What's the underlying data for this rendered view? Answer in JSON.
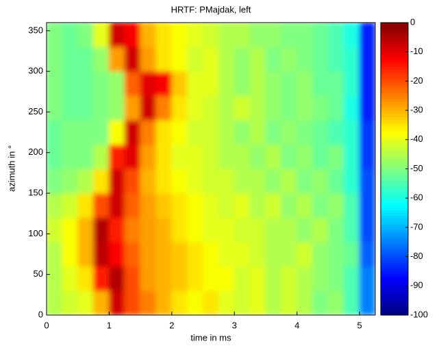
{
  "chart_data": {
    "type": "heatmap",
    "title": "HRTF: PMajdak, left",
    "x_label": "time in ms",
    "y_label": "azimuth in °",
    "colormap": "jet",
    "x": [
      0.125,
      0.375,
      0.625,
      0.875,
      1.125,
      1.375,
      1.625,
      1.875,
      2.125,
      2.375,
      2.625,
      2.875,
      3.125,
      3.375,
      3.625,
      3.875,
      4.125,
      4.375,
      4.625,
      4.875,
      5.125
    ],
    "y": [
      15,
      45,
      75,
      105,
      135,
      165,
      195,
      225,
      255,
      285,
      315,
      345
    ],
    "values": [
      [
        -45,
        -42,
        -40,
        -30,
        -8,
        -20,
        -25,
        -30,
        -35,
        -38,
        -35,
        -40,
        -42,
        -40,
        -45,
        -42,
        -45,
        -50,
        -48,
        -55,
        -75
      ],
      [
        -45,
        -40,
        -35,
        -15,
        -5,
        -20,
        -28,
        -30,
        -32,
        -35,
        -38,
        -38,
        -42,
        -40,
        -45,
        -42,
        -45,
        -48,
        -50,
        -55,
        -75
      ],
      [
        -45,
        -38,
        -30,
        -6,
        -12,
        -22,
        -28,
        -30,
        -32,
        -35,
        -38,
        -40,
        -40,
        -42,
        -45,
        -45,
        -42,
        -48,
        -50,
        -52,
        -78
      ],
      [
        -42,
        -38,
        -30,
        -5,
        -15,
        -25,
        -28,
        -30,
        -35,
        -38,
        -40,
        -40,
        -42,
        -42,
        -45,
        -45,
        -48,
        -45,
        -50,
        -55,
        -80
      ],
      [
        -45,
        -42,
        -35,
        -20,
        -8,
        -22,
        -28,
        -32,
        -35,
        -38,
        -40,
        -42,
        -40,
        -45,
        -42,
        -48,
        -45,
        -50,
        -48,
        -55,
        -80
      ],
      [
        -50,
        -48,
        -45,
        -35,
        -8,
        -20,
        -30,
        -35,
        -38,
        -40,
        -42,
        -42,
        -45,
        -45,
        -48,
        -45,
        -50,
        -48,
        -52,
        -58,
        -80
      ],
      [
        -52,
        -50,
        -50,
        -45,
        -15,
        -10,
        -28,
        -35,
        -40,
        -40,
        -42,
        -45,
        -45,
        -48,
        -45,
        -50,
        -48,
        -52,
        -50,
        -58,
        -82
      ],
      [
        -52,
        -50,
        -50,
        -50,
        -38,
        -8,
        -25,
        -35,
        -38,
        -42,
        -42,
        -45,
        -48,
        -45,
        -50,
        -48,
        -50,
        -52,
        -55,
        -58,
        -82
      ],
      [
        -50,
        -52,
        -52,
        -50,
        -48,
        -28,
        -8,
        -25,
        -35,
        -40,
        -42,
        -45,
        -42,
        -45,
        -48,
        -50,
        -48,
        -50,
        -52,
        -60,
        -85
      ],
      [
        -50,
        -52,
        -52,
        -50,
        -48,
        -22,
        -10,
        -12,
        -32,
        -40,
        -40,
        -45,
        -48,
        -45,
        -48,
        -50,
        -48,
        -52,
        -52,
        -58,
        -85
      ],
      [
        -50,
        -52,
        -52,
        -48,
        -28,
        -8,
        -28,
        -35,
        -38,
        -42,
        -40,
        -45,
        -48,
        -45,
        -50,
        -48,
        -50,
        -52,
        -55,
        -58,
        -85
      ],
      [
        -50,
        -52,
        -50,
        -40,
        -8,
        -12,
        -30,
        -35,
        -38,
        -40,
        -42,
        -45,
        -45,
        -48,
        -48,
        -50,
        -50,
        -52,
        -55,
        -60,
        -85
      ]
    ],
    "xlim": [
      0,
      5.25
    ],
    "ylim": [
      0,
      360
    ],
    "xticks": [
      0,
      1,
      2,
      3,
      4,
      5
    ],
    "yticks": [
      0,
      50,
      100,
      150,
      200,
      250,
      300,
      350
    ],
    "clim": [
      -100,
      0
    ],
    "cticks": [
      0,
      -10,
      -20,
      -30,
      -40,
      -50,
      -60,
      -70,
      -80,
      -90,
      -100
    ]
  }
}
